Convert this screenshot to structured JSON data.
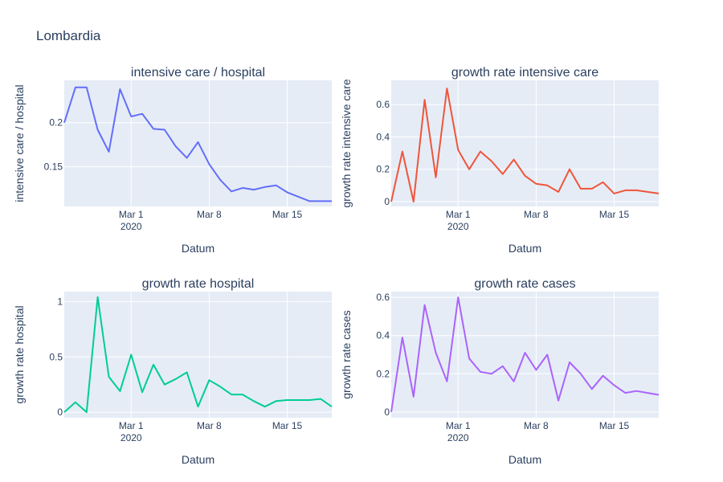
{
  "figure_title": "Lombardia",
  "chart_data": [
    {
      "type": "line",
      "title": "intensive care / hospital",
      "xlabel": "Datum",
      "ylabel": "intensive care / hospital",
      "color": "#636efa",
      "x": [
        "2020-02-24",
        "2020-02-25",
        "2020-02-26",
        "2020-02-27",
        "2020-02-28",
        "2020-02-29",
        "2020-03-01",
        "2020-03-02",
        "2020-03-03",
        "2020-03-04",
        "2020-03-05",
        "2020-03-06",
        "2020-03-07",
        "2020-03-08",
        "2020-03-09",
        "2020-03-10",
        "2020-03-11",
        "2020-03-12",
        "2020-03-13",
        "2020-03-14",
        "2020-03-15",
        "2020-03-16",
        "2020-03-17",
        "2020-03-18",
        "2020-03-19"
      ],
      "y": [
        0.2,
        0.24,
        0.24,
        0.192,
        0.167,
        0.238,
        0.207,
        0.21,
        0.193,
        0.192,
        0.173,
        0.16,
        0.178,
        0.153,
        0.135,
        0.122,
        0.126,
        0.124,
        0.127,
        0.129,
        0.121,
        0.116,
        0.111,
        0.111,
        0.111
      ],
      "xlim": [
        "2020-02-24",
        "2020-03-19"
      ],
      "ylim": [
        0.105,
        0.248
      ],
      "xticks": [
        {
          "date": "2020-03-01",
          "label": "Mar 1",
          "sub": "2020"
        },
        {
          "date": "2020-03-08",
          "label": "Mar 8",
          "sub": ""
        },
        {
          "date": "2020-03-15",
          "label": "Mar 15",
          "sub": ""
        }
      ],
      "yticks": [
        {
          "value": 0.15,
          "label": "0.15"
        },
        {
          "value": 0.2,
          "label": "0.2"
        }
      ],
      "grid": true
    },
    {
      "type": "line",
      "title": "growth rate intensive care",
      "xlabel": "Datum",
      "ylabel": "growth rate intensive care",
      "color": "#ef553b",
      "x": [
        "2020-02-24",
        "2020-02-25",
        "2020-02-26",
        "2020-02-27",
        "2020-02-28",
        "2020-02-29",
        "2020-03-01",
        "2020-03-02",
        "2020-03-03",
        "2020-03-04",
        "2020-03-05",
        "2020-03-06",
        "2020-03-07",
        "2020-03-08",
        "2020-03-09",
        "2020-03-10",
        "2020-03-11",
        "2020-03-12",
        "2020-03-13",
        "2020-03-14",
        "2020-03-15",
        "2020-03-16",
        "2020-03-17",
        "2020-03-18",
        "2020-03-19"
      ],
      "y": [
        0,
        0.31,
        0,
        0.63,
        0.15,
        0.7,
        0.32,
        0.2,
        0.31,
        0.25,
        0.17,
        0.26,
        0.16,
        0.11,
        0.1,
        0.06,
        0.2,
        0.08,
        0.08,
        0.12,
        0.05,
        0.07,
        0.07,
        0.06,
        0.05
      ],
      "xlim": [
        "2020-02-24",
        "2020-03-19"
      ],
      "ylim": [
        -0.03,
        0.75
      ],
      "xticks": [
        {
          "date": "2020-03-01",
          "label": "Mar 1",
          "sub": "2020"
        },
        {
          "date": "2020-03-08",
          "label": "Mar 8",
          "sub": ""
        },
        {
          "date": "2020-03-15",
          "label": "Mar 15",
          "sub": ""
        }
      ],
      "yticks": [
        {
          "value": 0,
          "label": "0"
        },
        {
          "value": 0.2,
          "label": "0.2"
        },
        {
          "value": 0.4,
          "label": "0.4"
        },
        {
          "value": 0.6,
          "label": "0.6"
        }
      ],
      "grid": true
    },
    {
      "type": "line",
      "title": "growth rate hospital",
      "xlabel": "Datum",
      "ylabel": "growth rate hospital",
      "color": "#00cc96",
      "x": [
        "2020-02-24",
        "2020-02-25",
        "2020-02-26",
        "2020-02-27",
        "2020-02-28",
        "2020-02-29",
        "2020-03-01",
        "2020-03-02",
        "2020-03-03",
        "2020-03-04",
        "2020-03-05",
        "2020-03-06",
        "2020-03-07",
        "2020-03-08",
        "2020-03-09",
        "2020-03-10",
        "2020-03-11",
        "2020-03-12",
        "2020-03-13",
        "2020-03-14",
        "2020-03-15",
        "2020-03-16",
        "2020-03-17",
        "2020-03-18",
        "2020-03-19"
      ],
      "y": [
        0,
        0.09,
        0,
        1.04,
        0.32,
        0.19,
        0.52,
        0.18,
        0.43,
        0.25,
        0.3,
        0.36,
        0.05,
        0.29,
        0.23,
        0.16,
        0.16,
        0.1,
        0.05,
        0.1,
        0.11,
        0.11,
        0.11,
        0.12,
        0.05
      ],
      "xlim": [
        "2020-02-24",
        "2020-03-19"
      ],
      "ylim": [
        -0.05,
        1.09
      ],
      "xticks": [
        {
          "date": "2020-03-01",
          "label": "Mar 1",
          "sub": "2020"
        },
        {
          "date": "2020-03-08",
          "label": "Mar 8",
          "sub": ""
        },
        {
          "date": "2020-03-15",
          "label": "Mar 15",
          "sub": ""
        }
      ],
      "yticks": [
        {
          "value": 0,
          "label": "0"
        },
        {
          "value": 0.5,
          "label": "0.5"
        },
        {
          "value": 1,
          "label": "1"
        }
      ],
      "grid": true
    },
    {
      "type": "line",
      "title": "growth rate cases",
      "xlabel": "Datum",
      "ylabel": "growth rate cases",
      "color": "#ab63fa",
      "x": [
        "2020-02-24",
        "2020-02-25",
        "2020-02-26",
        "2020-02-27",
        "2020-02-28",
        "2020-02-29",
        "2020-03-01",
        "2020-03-02",
        "2020-03-03",
        "2020-03-04",
        "2020-03-05",
        "2020-03-06",
        "2020-03-07",
        "2020-03-08",
        "2020-03-09",
        "2020-03-10",
        "2020-03-11",
        "2020-03-12",
        "2020-03-13",
        "2020-03-14",
        "2020-03-15",
        "2020-03-16",
        "2020-03-17",
        "2020-03-18",
        "2020-03-19"
      ],
      "y": [
        0,
        0.39,
        0.08,
        0.56,
        0.31,
        0.16,
        0.6,
        0.28,
        0.21,
        0.2,
        0.24,
        0.16,
        0.31,
        0.22,
        0.3,
        0.06,
        0.26,
        0.2,
        0.12,
        0.19,
        0.14,
        0.1,
        0.11,
        0.1,
        0.09
      ],
      "xlim": [
        "2020-02-24",
        "2020-03-19"
      ],
      "ylim": [
        -0.03,
        0.63
      ],
      "xticks": [
        {
          "date": "2020-03-01",
          "label": "Mar 1",
          "sub": "2020"
        },
        {
          "date": "2020-03-08",
          "label": "Mar 8",
          "sub": ""
        },
        {
          "date": "2020-03-15",
          "label": "Mar 15",
          "sub": ""
        }
      ],
      "yticks": [
        {
          "value": 0,
          "label": "0"
        },
        {
          "value": 0.2,
          "label": "0.2"
        },
        {
          "value": 0.4,
          "label": "0.4"
        },
        {
          "value": 0.6,
          "label": "0.6"
        }
      ],
      "grid": true
    }
  ]
}
